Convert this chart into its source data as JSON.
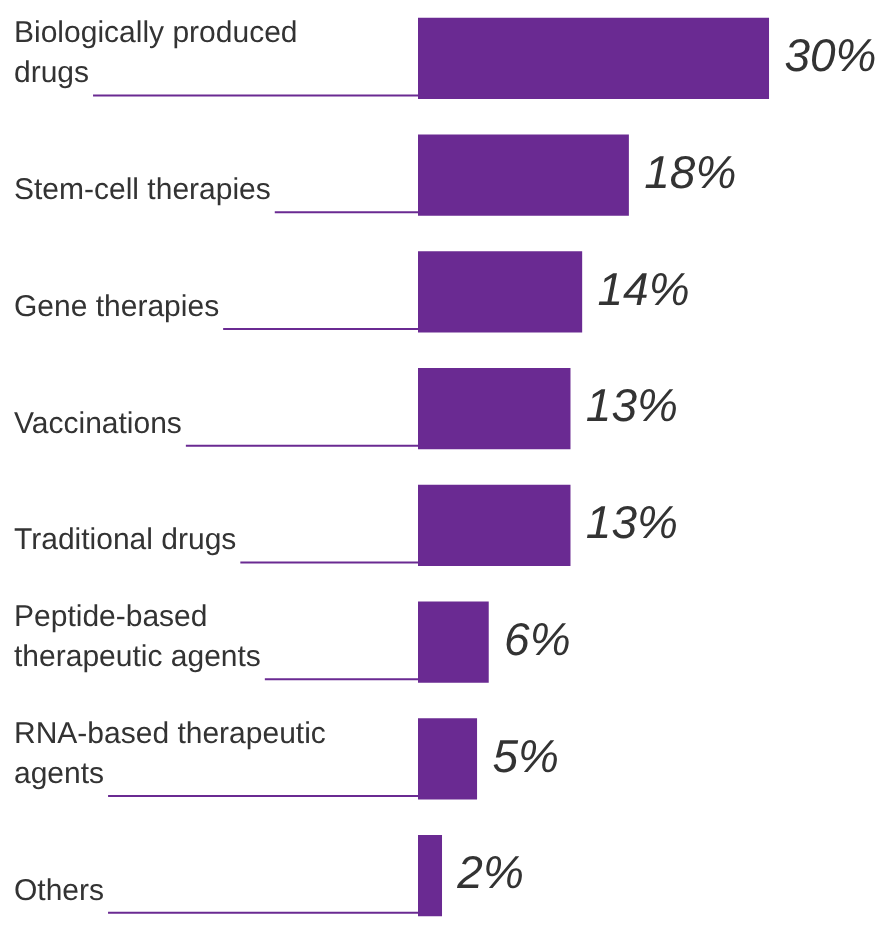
{
  "chart_data": {
    "type": "bar",
    "orientation": "horizontal",
    "categories": [
      "Biologically produced drugs",
      "Stem-cell therapies",
      "Gene therapies",
      "Vaccinations",
      "Traditional drugs",
      "Peptide-based therapeutic agents",
      "RNA-based therapeutic agents",
      "Others"
    ],
    "values": [
      30,
      18,
      14,
      13,
      13,
      6,
      5,
      2
    ],
    "value_labels": [
      "30%",
      "18%",
      "14%",
      "13%",
      "13%",
      "6%",
      "5%",
      "2%"
    ],
    "color": "#6a2a92"
  }
}
